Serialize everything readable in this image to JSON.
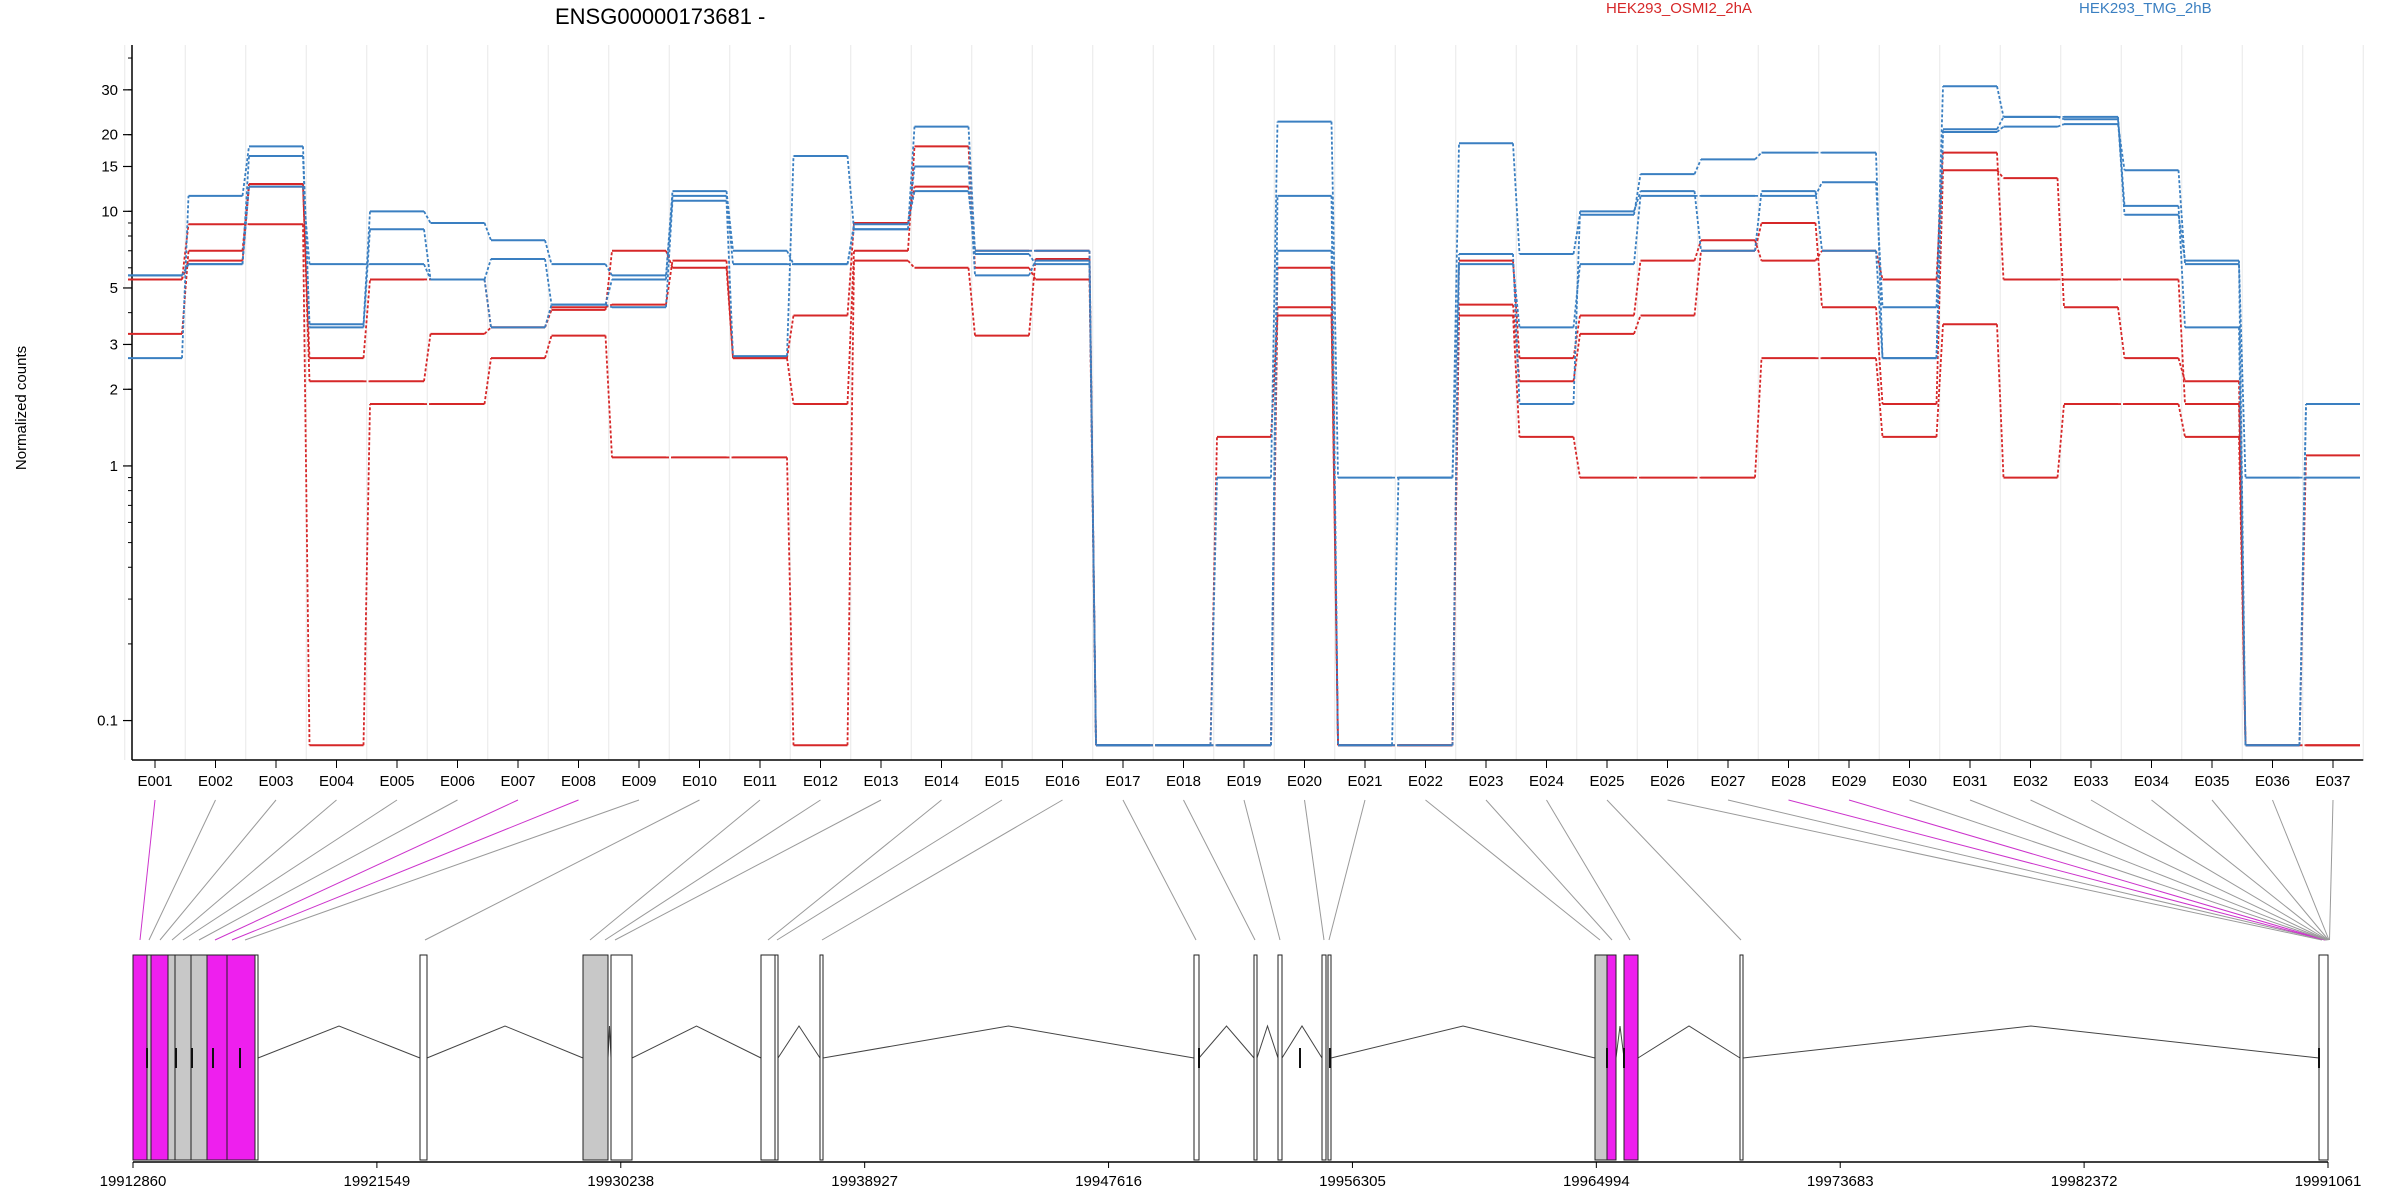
{
  "header": {
    "title": "ENSG00000173681 -",
    "legend": [
      {
        "label": "HEK293_OSMI2_2hA",
        "color": "#d62728"
      },
      {
        "label": "HEK293_TMG_2hB",
        "color": "#3a7fc1"
      }
    ]
  },
  "colors": {
    "red": "#d62728",
    "blue": "#3a7fc1",
    "highlight": "#ee1fee",
    "exon_gray": "#c8c8c8",
    "grid": "#e8e8e8"
  },
  "chart_data": {
    "type": "line",
    "title": "ENSG00000173681 -",
    "ylabel": "Normalized counts",
    "yscale": "log",
    "yticks": [
      0.1,
      1,
      2,
      3,
      5,
      10,
      15,
      20,
      30
    ],
    "ytick_labels": [
      "0.1",
      "1",
      "2",
      "3",
      "5",
      "10",
      "15",
      "20",
      "30"
    ],
    "ylim": [
      0.07,
      45
    ],
    "grid": "vertical",
    "categories": [
      "E001",
      "E002",
      "E003",
      "E004",
      "E005",
      "E006",
      "E007",
      "E008",
      "E009",
      "E010",
      "E011",
      "E012",
      "E013",
      "E014",
      "E015",
      "E016",
      "E017",
      "E018",
      "E019",
      "E020",
      "E021",
      "E022",
      "E023",
      "E024",
      "E025",
      "E026",
      "E027",
      "E028",
      "E029",
      "E030",
      "E031",
      "E032",
      "E033",
      "E034",
      "E035",
      "E036",
      "E037"
    ],
    "series": [
      {
        "group": "HEK293_OSMI2_2hA",
        "color": "#d62728",
        "values": [
          5.4,
          8.9,
          8.9,
          0.08,
          1.75,
          1.75,
          2.65,
          3.25,
          1.08,
          1.08,
          1.08,
          0.08,
          6.4,
          6.0,
          3.25,
          6.5,
          0.08,
          0.08,
          1.3,
          3.9,
          0.08,
          0.08,
          3.9,
          1.3,
          0.9,
          0.9,
          0.9,
          2.65,
          2.65,
          1.3,
          3.6,
          0.9,
          1.75,
          1.75,
          1.3,
          0.08,
          1.1
        ]
      },
      {
        "group": "HEK293_OSMI2_2hA",
        "color": "#d62728",
        "values": [
          3.3,
          7.0,
          12.8,
          2.15,
          2.15,
          3.3,
          3.5,
          4.2,
          4.3,
          6.4,
          2.65,
          1.75,
          7.0,
          18.0,
          6.0,
          5.4,
          0.08,
          0.08,
          0.08,
          6.0,
          0.08,
          0.08,
          4.3,
          2.15,
          3.3,
          3.9,
          7.0,
          9.0,
          4.2,
          1.75,
          14.5,
          13.5,
          4.2,
          2.65,
          2.15,
          0.08,
          0.08
        ]
      },
      {
        "group": "HEK293_OSMI2_2hA",
        "color": "#d62728",
        "values": [
          5.4,
          6.4,
          12.5,
          2.65,
          5.4,
          5.4,
          3.5,
          4.1,
          7.0,
          6.0,
          2.65,
          3.9,
          9.0,
          12.5,
          7.0,
          7.0,
          0.08,
          0.08,
          0.08,
          4.2,
          0.08,
          0.08,
          6.4,
          2.65,
          3.9,
          6.4,
          7.7,
          6.4,
          7.0,
          5.4,
          17.0,
          5.4,
          5.4,
          5.4,
          1.75,
          0.08,
          0.08
        ]
      },
      {
        "group": "HEK293_TMG_2hB",
        "color": "#3a7fc1",
        "values": [
          5.6,
          6.2,
          16.5,
          3.6,
          10.0,
          9.0,
          7.7,
          6.2,
          5.6,
          12.0,
          7.0,
          6.2,
          8.5,
          21.5,
          7.0,
          7.0,
          0.08,
          0.08,
          0.9,
          22.5,
          0.9,
          0.9,
          18.5,
          6.8,
          9.7,
          14.0,
          16.0,
          17.0,
          17.0,
          2.65,
          20.5,
          21.5,
          22.0,
          14.5,
          6.2,
          0.9,
          0.9
        ]
      },
      {
        "group": "HEK293_TMG_2hB",
        "color": "#3a7fc1",
        "values": [
          2.65,
          11.5,
          18.0,
          3.5,
          8.5,
          5.4,
          3.5,
          4.3,
          4.2,
          11.0,
          2.7,
          16.5,
          8.5,
          15.0,
          5.6,
          6.4,
          0.08,
          0.08,
          0.08,
          11.5,
          0.08,
          0.9,
          6.2,
          3.5,
          6.2,
          11.5,
          11.5,
          11.5,
          13.0,
          4.2,
          31.0,
          23.5,
          23.5,
          10.5,
          3.5,
          0.08,
          1.75
        ]
      },
      {
        "group": "HEK293_TMG_2hB",
        "color": "#3a7fc1",
        "values": [
          5.6,
          6.2,
          12.5,
          6.2,
          6.2,
          5.4,
          6.5,
          4.3,
          5.4,
          11.5,
          6.2,
          6.2,
          8.9,
          12.0,
          6.8,
          6.2,
          0.08,
          0.08,
          0.08,
          7.0,
          0.08,
          0.08,
          6.8,
          1.75,
          10.0,
          12.0,
          7.0,
          12.0,
          7.0,
          2.65,
          21.0,
          23.5,
          23.0,
          9.7,
          6.4,
          0.08,
          1.75
        ]
      }
    ]
  },
  "gene_model": {
    "coordinate_labels": [
      "19912860",
      "19921549",
      "19930238",
      "19938927",
      "19947616",
      "19956305",
      "19964994",
      "19973683",
      "19982372",
      "19991061"
    ],
    "coord_range": [
      19912860,
      19991061
    ],
    "exon_colors": [
      "highlight",
      "gray",
      "gray",
      "gray",
      "gray",
      "gray",
      "highlight",
      "highlight",
      "white",
      "white",
      "white",
      "white",
      "gray",
      "white",
      "white",
      "white",
      "white",
      "white",
      "white",
      "white",
      "white",
      "white",
      "white",
      "white",
      "white",
      "white",
      "gray",
      "highlight",
      "highlight",
      "white",
      "white",
      "white",
      "white",
      "white",
      "white",
      "white",
      "white"
    ]
  }
}
